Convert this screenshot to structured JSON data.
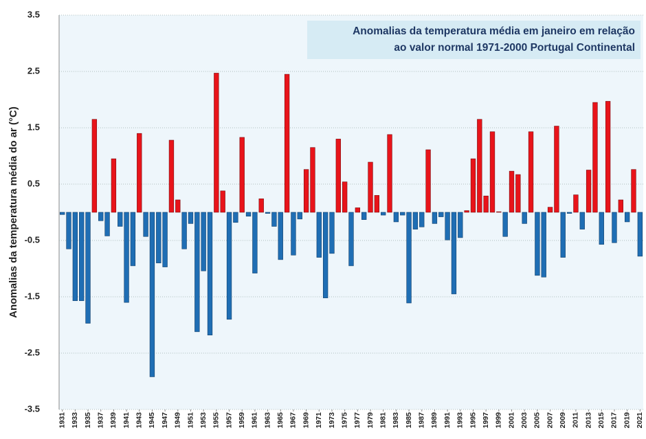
{
  "chart_data": {
    "type": "bar",
    "title": [
      "Anomalias da temperatura média em janeiro em relação",
      "ao valor normal 1971-2000 Portugal Continental"
    ],
    "y_label": "Anomalias da temperatura média do ar (°C)",
    "x": [
      1931,
      1932,
      1933,
      1934,
      1935,
      1936,
      1937,
      1938,
      1939,
      1940,
      1941,
      1942,
      1943,
      1944,
      1945,
      1946,
      1947,
      1948,
      1949,
      1950,
      1951,
      1952,
      1953,
      1954,
      1955,
      1956,
      1957,
      1958,
      1959,
      1960,
      1961,
      1962,
      1963,
      1964,
      1965,
      1966,
      1967,
      1968,
      1969,
      1970,
      1971,
      1972,
      1973,
      1974,
      1975,
      1976,
      1977,
      1978,
      1979,
      1980,
      1981,
      1982,
      1983,
      1984,
      1985,
      1986,
      1987,
      1988,
      1989,
      1990,
      1991,
      1992,
      1993,
      1994,
      1995,
      1996,
      1997,
      1998,
      1999,
      2000,
      2001,
      2002,
      2003,
      2004,
      2005,
      2006,
      2007,
      2008,
      2009,
      2010,
      2011,
      2012,
      2013,
      2014,
      2015,
      2016,
      2017,
      2018,
      2019,
      2020,
      2021
    ],
    "values": [
      -0.04,
      -0.65,
      -1.57,
      -1.57,
      -1.97,
      1.65,
      -0.15,
      -0.42,
      0.95,
      -0.25,
      -1.6,
      -0.95,
      1.4,
      -0.43,
      -2.92,
      -0.9,
      -0.97,
      1.28,
      0.22,
      -0.65,
      -0.2,
      -2.12,
      -1.04,
      -2.18,
      2.47,
      0.38,
      -1.9,
      -0.18,
      1.33,
      -0.07,
      -1.08,
      0.24,
      -0.02,
      -0.25,
      -0.84,
      2.45,
      -0.76,
      -0.12,
      0.76,
      1.15,
      -0.8,
      -1.52,
      -0.73,
      1.3,
      0.54,
      -0.95,
      0.08,
      -0.13,
      0.89,
      0.3,
      -0.05,
      1.38,
      -0.17,
      -0.05,
      -1.61,
      -0.3,
      -0.26,
      1.11,
      -0.2,
      -0.08,
      -0.49,
      -1.45,
      -0.45,
      0.03,
      0.95,
      1.65,
      0.29,
      1.43,
      0.01,
      -0.43,
      0.73,
      0.67,
      -0.2,
      1.43,
      -1.12,
      -1.15,
      0.09,
      1.53,
      -0.8,
      -0.02,
      0.31,
      -0.3,
      0.75,
      1.95,
      -0.57,
      1.97,
      -0.54,
      0.22,
      -0.17,
      0.76,
      -0.78
    ],
    "color_positive": "#e8141a",
    "color_negative": "#1f6eb4",
    "xlim": [
      1930.5,
      2021.5
    ],
    "xticks": [
      1931,
      1933,
      1935,
      1937,
      1939,
      1941,
      1943,
      1945,
      1947,
      1949,
      1951,
      1953,
      1955,
      1957,
      1959,
      1961,
      1963,
      1965,
      1967,
      1969,
      1971,
      1973,
      1975,
      1977,
      1979,
      1981,
      1983,
      1985,
      1987,
      1989,
      1991,
      1993,
      1995,
      1997,
      1999,
      2001,
      2003,
      2005,
      2007,
      2009,
      2011,
      2013,
      2015,
      2017,
      2019,
      2021
    ],
    "ylim": [
      -3.5,
      3.5
    ],
    "yticks": [
      3.5,
      2.5,
      1.5,
      0.5,
      -0.5,
      -1.5,
      -2.5,
      -3.5
    ],
    "grid": true
  }
}
